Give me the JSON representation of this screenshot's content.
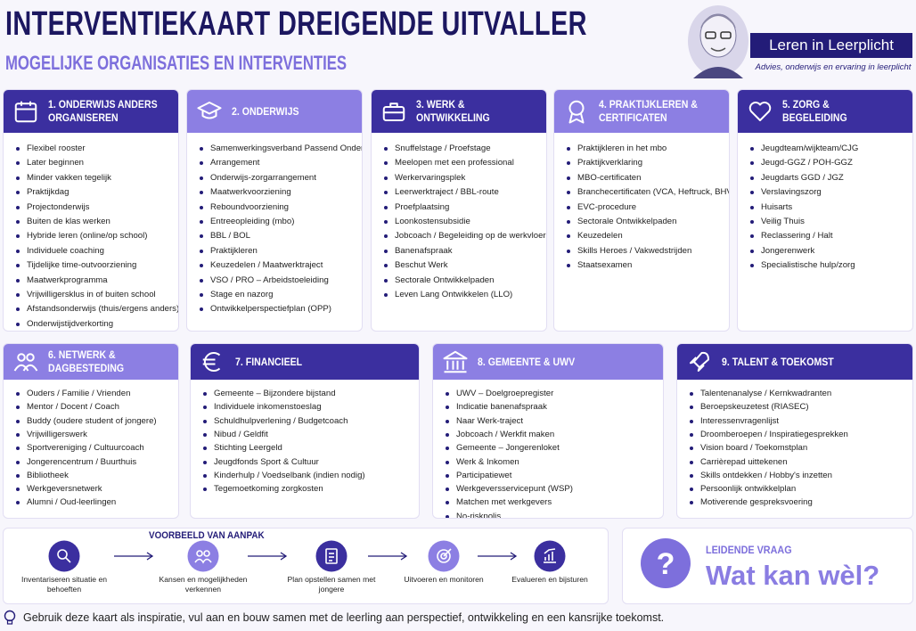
{
  "header": {
    "title": "INTERVENTIEKAART DREIGENDE UITVALLER",
    "subtitle": "MOGELIJKE ORGANISATIES EN INTERVENTIES",
    "brand": "Leren in Leerplicht",
    "tagline": "Advies, onderwijs en ervaring in leerplicht"
  },
  "cards": [
    {
      "title": "1. ONDERWIJS ANDERS ORGANISEREN",
      "items": [
        "Flexibel rooster",
        "Later beginnen",
        "Minder vakken tegelijk",
        "Praktijkdag",
        "Projectonderwijs",
        "Buiten de klas werken",
        "Hybride leren (online/op school)",
        "Individuele coaching",
        "Tijdelijke time-outvoorziening",
        "Maatwerkprogramma",
        "Vrijwilligersklus in of buiten school",
        "Afstandsonderwijs (thuis/ergens anders)",
        "Onderwijstijdverkorting"
      ]
    },
    {
      "title": "2. ONDERWIJS",
      "items": [
        "Samenwerkingsverband Passend Onderwijs",
        "Arrangement",
        "Onderwijs-zorgarrangement",
        "Maatwerkvoorziening",
        "Reboundvoorziening",
        "Entreeopleiding (mbo)",
        "BBL / BOL",
        "Praktijkleren",
        "Keuzedelen / Maatwerktraject",
        "VSO / PRO – Arbeidstoeleiding",
        "Stage en nazorg",
        "Ontwikkelperspectiefplan (OPP)"
      ]
    },
    {
      "title": "3. WERK & ONTWIKKELING",
      "items": [
        "Snuffelstage / Proefstage",
        "Meelopen met een professional",
        "Werkervaringsplek",
        "Leerwerktraject / BBL-route",
        "Proefplaatsing",
        "Loonkostensubsidie",
        "Jobcoach / Begeleiding op de werkvloer",
        "Banenafspraak",
        "Beschut Werk",
        "Sectorale Ontwikkelpaden",
        "Leven Lang Ontwikkelen (LLO)"
      ]
    },
    {
      "title": "4. PRAKTIJKLEREN & CERTIFICATEN",
      "items": [
        "Praktijkleren in het mbo",
        "Praktijkverklaring",
        "MBO-certificaten",
        "Branchecertificaten (VCA, Heftruck, BHV)",
        "EVC-procedure",
        "Sectorale Ontwikkelpaden",
        "Keuzedelen",
        "Skills Heroes / Vakwedstrijden",
        "Staatsexamen"
      ]
    },
    {
      "title": "5. ZORG & BEGELEIDING",
      "items": [
        "Jeugdteam/wijkteam/CJG",
        "Jeugd-GGZ / POH-GGZ",
        "Jeugdarts GGD / JGZ",
        "Verslavingszorg",
        "Huisarts",
        "Veilig Thuis",
        "Reclassering / Halt",
        "Jongerenwerk",
        "Specialistische hulp/zorg"
      ]
    },
    {
      "title": "6. NETWERK & DAGBESTEDING",
      "items": [
        "Ouders / Familie / Vrienden",
        "Mentor / Docent / Coach",
        "Buddy (oudere student of jongere)",
        "Vrijwilligerswerk",
        "Sportvereniging / Cultuurcoach",
        "Jongerencentrum / Buurthuis",
        "Bibliotheek",
        "Werkgeversnetwerk",
        "Alumni / Oud-leerlingen"
      ]
    },
    {
      "title": "7. FINANCIEEL",
      "items": [
        "Gemeente – Bijzondere bijstand",
        "Individuele inkomenstoeslag",
        "Schuldhulpverlening / Budgetcoach",
        "Nibud / Geldfit",
        "Stichting Leergeld",
        "Jeugdfonds Sport & Cultuur",
        "Kinderhulp / Voedselbank (indien nodig)",
        "Tegemoetkoming zorgkosten"
      ]
    },
    {
      "title": "8. GEMEENTE & UWV",
      "items": [
        "UWV – Doelgroepregister",
        "Indicatie banenafspraak",
        "Naar Werk-traject",
        "Jobcoach / Werkfit maken",
        "Gemeente – Jongerenloket",
        "Werk & Inkomen",
        "Participatiewet",
        "Werkgeversservicepunt (WSP)",
        "Matchen met werkgevers",
        "No-riskpolis"
      ]
    },
    {
      "title": "9. TALENT & TOEKOMST",
      "items": [
        "Talentenanalyse / Kernkwadranten",
        "Beroepskeuzetest (RIASEC)",
        "Interessenvragenlijst",
        "Droomberoepen / Inspiratiegesprekken",
        "Vision board / Toekomstplan",
        "Carrièrepad uittekenen",
        "Skills ontdekken / Hobby's inzetten",
        "Persoonlijk ontwikkelplan",
        "Motiverende gespreksvoering"
      ]
    }
  ],
  "approach": {
    "title": "VOORBEELD VAN AANPAK",
    "steps": [
      "Inventariseren situatie en behoeften",
      "Kansen en mogelijkheden verkennen",
      "Plan opstellen samen met jongere",
      "Uitvoeren en monitoren",
      "Evalueren en bijsturen"
    ]
  },
  "question": {
    "label": "LEIDENDE VRAAG",
    "text": "Wat kan wèl?"
  },
  "footer": "Gebruik deze kaart als inspiratie, vul aan en bouw samen met de leerling aan perspectief, ontwikkeling en een kansrijke toekomst."
}
